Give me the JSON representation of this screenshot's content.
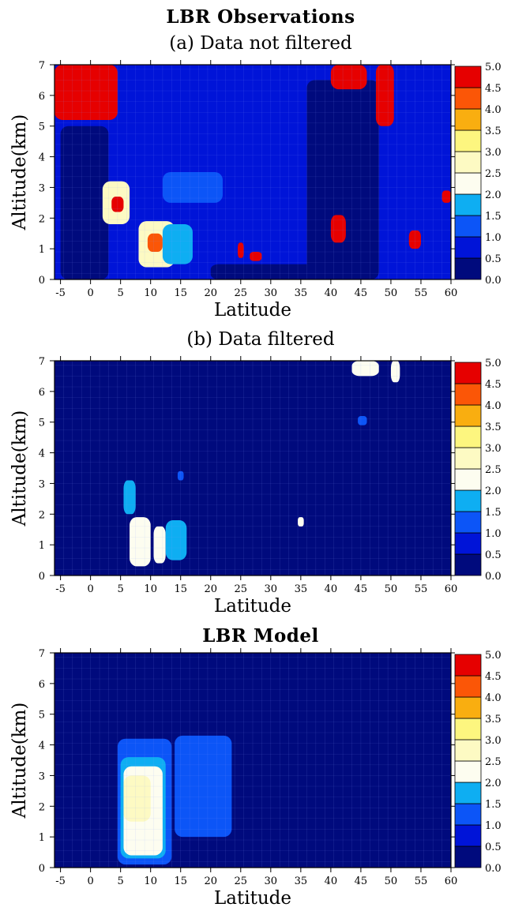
{
  "figure": {
    "observations_title": "LBR Observations",
    "model_title": "LBR Model"
  },
  "colorbar": {
    "levels": [
      "0.0",
      "0.5",
      "1.0",
      "1.5",
      "2.0",
      "2.5",
      "3.0",
      "3.5",
      "4.0",
      "4.5",
      "5.0"
    ],
    "colors": [
      "#000a7d",
      "#0014d8",
      "#0c55f7",
      "#0eaef2",
      "#fdfdf0",
      "#fdfac3",
      "#fdf67f",
      "#f9ae10",
      "#fb5607",
      "#e60000"
    ]
  },
  "chart_data": [
    {
      "type": "heatmap",
      "title": "(a) Data not filtered",
      "xlabel": "Latitude",
      "ylabel": "Altitude(km)",
      "xlim": [
        -6,
        60
      ],
      "ylim": [
        0,
        7
      ],
      "x_ticks": [
        "-5",
        "0",
        "5",
        "10",
        "15",
        "20",
        "25",
        "30",
        "35",
        "40",
        "45",
        "50",
        "55",
        "60"
      ],
      "y_ticks": [
        "0",
        "1",
        "2",
        "3",
        "4",
        "5",
        "6",
        "7"
      ],
      "background_value": 0.8,
      "features": [
        {
          "lat": [
            -6,
            4.5
          ],
          "alt": [
            5.2,
            7.0
          ],
          "value": 5.0
        },
        {
          "lat": [
            -2,
            1.5
          ],
          "alt": [
            6.3,
            7.0
          ],
          "value": 5.0
        },
        {
          "lat": [
            -5,
            3
          ],
          "alt": [
            0,
            5.0
          ],
          "value": 0.3
        },
        {
          "lat": [
            2,
            6.5
          ],
          "alt": [
            1.8,
            3.2
          ],
          "value": 2.5
        },
        {
          "lat": [
            3.5,
            5.5
          ],
          "alt": [
            2.2,
            2.7
          ],
          "value": 4.5
        },
        {
          "lat": [
            8,
            14
          ],
          "alt": [
            0.4,
            1.9
          ],
          "value": 2.5
        },
        {
          "lat": [
            9.5,
            12
          ],
          "alt": [
            0.9,
            1.5
          ],
          "value": 4.0
        },
        {
          "lat": [
            12,
            17
          ],
          "alt": [
            0.5,
            1.8
          ],
          "value": 1.8
        },
        {
          "lat": [
            12,
            22
          ],
          "alt": [
            2.5,
            3.5
          ],
          "value": 1.3
        },
        {
          "lat": [
            20,
            38
          ],
          "alt": [
            0,
            0.5
          ],
          "value": 0.1
        },
        {
          "lat": [
            24.5,
            25.5
          ],
          "alt": [
            0.7,
            1.2
          ],
          "value": 5.0
        },
        {
          "lat": [
            26.5,
            28.5
          ],
          "alt": [
            0.6,
            0.9
          ],
          "value": 5.0
        },
        {
          "lat": [
            36,
            48
          ],
          "alt": [
            0,
            6.5
          ],
          "value": 0.3
        },
        {
          "lat": [
            40,
            42.5
          ],
          "alt": [
            1.2,
            2.1
          ],
          "value": 5.0
        },
        {
          "lat": [
            40,
            46
          ],
          "alt": [
            6.2,
            7.0
          ],
          "value": 5.0
        },
        {
          "lat": [
            47.5,
            50.5
          ],
          "alt": [
            5.0,
            7.0
          ],
          "value": 5.0
        },
        {
          "lat": [
            53,
            55
          ],
          "alt": [
            1.0,
            1.6
          ],
          "value": 5.0
        },
        {
          "lat": [
            58.5,
            60
          ],
          "alt": [
            2.5,
            2.9
          ],
          "value": 5.0
        }
      ]
    },
    {
      "type": "heatmap",
      "title": "(b) Data filtered",
      "xlabel": "Latitude",
      "ylabel": "Altitude(km)",
      "xlim": [
        -6,
        60
      ],
      "ylim": [
        0,
        7
      ],
      "x_ticks": [
        "-5",
        "0",
        "5",
        "10",
        "15",
        "20",
        "25",
        "30",
        "35",
        "40",
        "45",
        "50",
        "55",
        "60"
      ],
      "y_ticks": [
        "0",
        "1",
        "2",
        "3",
        "4",
        "5",
        "6",
        "7"
      ],
      "background_value": 0.2,
      "features": [
        {
          "lat": [
            5.5,
            7.5
          ],
          "alt": [
            2.0,
            3.1
          ],
          "value": 1.8
        },
        {
          "lat": [
            6.5,
            10
          ],
          "alt": [
            0.3,
            1.9
          ],
          "value": 2.2
        },
        {
          "lat": [
            10.5,
            12.5
          ],
          "alt": [
            0.4,
            1.6
          ],
          "value": 2.3
        },
        {
          "lat": [
            12.5,
            16
          ],
          "alt": [
            0.5,
            1.8
          ],
          "value": 1.7
        },
        {
          "lat": [
            14.5,
            15.5
          ],
          "alt": [
            3.1,
            3.4
          ],
          "value": 1.2
        },
        {
          "lat": [
            34.5,
            35.5
          ],
          "alt": [
            1.6,
            1.9
          ],
          "value": 2.2
        },
        {
          "lat": [
            43.5,
            48
          ],
          "alt": [
            6.5,
            7.0
          ],
          "value": 2.0
        },
        {
          "lat": [
            50,
            51.5
          ],
          "alt": [
            6.3,
            7.0
          ],
          "value": 2.0
        },
        {
          "lat": [
            44.5,
            46
          ],
          "alt": [
            4.9,
            5.2
          ],
          "value": 1.2
        }
      ]
    },
    {
      "type": "heatmap",
      "title": "",
      "xlabel": "Latitude",
      "ylabel": "Altitude(km)",
      "xlim": [
        -6,
        60
      ],
      "ylim": [
        0,
        7
      ],
      "x_ticks": [
        "-5",
        "0",
        "5",
        "10",
        "15",
        "20",
        "25",
        "30",
        "35",
        "40",
        "45",
        "50",
        "55",
        "60"
      ],
      "y_ticks": [
        "0",
        "1",
        "2",
        "3",
        "4",
        "5",
        "6",
        "7"
      ],
      "background_value": 0.2,
      "features": [
        {
          "lat": [
            4.5,
            13.5
          ],
          "alt": [
            0.1,
            4.2
          ],
          "value": 1.2
        },
        {
          "lat": [
            5,
            12.5
          ],
          "alt": [
            0.3,
            3.6
          ],
          "value": 1.8
        },
        {
          "lat": [
            5.5,
            12
          ],
          "alt": [
            0.4,
            3.3
          ],
          "value": 2.3
        },
        {
          "lat": [
            5.5,
            10
          ],
          "alt": [
            1.5,
            3.0
          ],
          "value": 2.8
        },
        {
          "lat": [
            14,
            23.5
          ],
          "alt": [
            1.0,
            4.3
          ],
          "value": 1.2
        }
      ]
    }
  ]
}
